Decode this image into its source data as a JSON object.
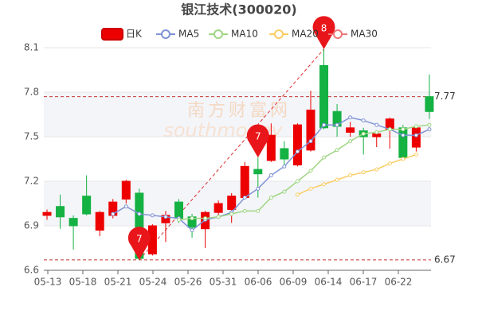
{
  "chart_data": {
    "type": "candlestick",
    "title": "银江技术(300020)",
    "categories": [
      null,
      null,
      null,
      null,
      null,
      null,
      null,
      null,
      null,
      null,
      null,
      null,
      null,
      null,
      null,
      null,
      null,
      null,
      null,
      null,
      null,
      null,
      null,
      null,
      null,
      null,
      null,
      null,
      null,
      null
    ],
    "xticks": [
      "05-13",
      "05-18",
      "05-21",
      "05-24",
      "05-26",
      "05-31",
      "06-06",
      "06-09",
      "06-14",
      "06-17",
      "06-22"
    ],
    "candles": {
      "name": "日K",
      "up_color": "#14b143",
      "down_color": "#ec0000",
      "open": [
        6.99,
        6.96,
        6.9,
        6.98,
        6.99,
        7.06,
        7.2,
        6.68,
        6.9,
        6.97,
        6.95,
        6.89,
        6.99,
        7.05,
        7.1,
        7.3,
        7.25,
        7.51,
        7.35,
        7.58,
        7.68,
        7.56,
        7.57,
        7.56,
        7.5,
        7.52,
        7.62,
        7.36,
        7.56,
        7.67
      ],
      "close": [
        6.97,
        7.03,
        6.95,
        7.1,
        6.87,
        6.97,
        7.08,
        7.12,
        6.71,
        6.92,
        7.06,
        6.96,
        6.88,
        6.99,
        7.01,
        7.09,
        7.28,
        7.34,
        7.42,
        7.31,
        7.41,
        7.98,
        7.67,
        7.53,
        7.54,
        7.5,
        7.55,
        7.56,
        7.43,
        7.77
      ],
      "high": [
        7.01,
        7.11,
        6.97,
        7.24,
        7.0,
        7.08,
        7.21,
        7.15,
        6.91,
        7.0,
        7.08,
        6.98,
        7.0,
        7.07,
        7.12,
        7.33,
        7.36,
        7.59,
        7.47,
        7.59,
        7.81,
        8.09,
        7.72,
        7.6,
        7.56,
        7.54,
        7.63,
        7.58,
        7.58,
        7.92
      ],
      "low": [
        6.94,
        6.88,
        6.74,
        6.97,
        6.83,
        6.95,
        7.05,
        6.67,
        6.7,
        6.79,
        6.92,
        6.82,
        6.75,
        6.96,
        6.92,
        7.08,
        7.09,
        7.33,
        7.31,
        7.3,
        7.4,
        7.55,
        7.5,
        7.5,
        7.38,
        7.43,
        7.42,
        7.35,
        7.4,
        7.62
      ]
    },
    "series": [
      {
        "name": "MA5",
        "color": "#7f92d4",
        "values": [
          null,
          null,
          null,
          null,
          null,
          6.98,
          7.03,
          6.98,
          6.97,
          6.96,
          6.95,
          6.87,
          6.94,
          6.96,
          6.99,
          7.09,
          7.15,
          7.24,
          7.3,
          7.4,
          7.47,
          7.58,
          7.58,
          7.63,
          7.61,
          7.58,
          7.55,
          7.51,
          7.51,
          7.55
        ]
      },
      {
        "name": "MA10",
        "color": "#9fd683",
        "values": [
          null,
          null,
          null,
          null,
          null,
          null,
          null,
          null,
          null,
          null,
          6.94,
          6.95,
          6.95,
          6.96,
          6.98,
          7.0,
          7.0,
          7.09,
          7.13,
          7.2,
          7.27,
          7.36,
          7.41,
          7.47,
          7.52,
          7.53,
          7.55,
          7.55,
          7.57,
          7.58
        ]
      },
      {
        "name": "MA20",
        "color": "#f9cd63",
        "values": [
          null,
          null,
          null,
          null,
          null,
          null,
          null,
          null,
          null,
          null,
          null,
          null,
          null,
          null,
          null,
          null,
          null,
          null,
          null,
          7.11,
          7.15,
          7.18,
          7.21,
          7.24,
          7.26,
          7.28,
          7.32,
          7.35,
          7.38,
          null
        ]
      },
      {
        "name": "MA30",
        "color": "#ee7777",
        "values": [
          null,
          null,
          null,
          null,
          null,
          null,
          null,
          null,
          null,
          null,
          null,
          null,
          null,
          null,
          null,
          null,
          null,
          null,
          null,
          null,
          null,
          null,
          null,
          null,
          null,
          null,
          null,
          null,
          null,
          null
        ]
      }
    ],
    "annotations": [
      {
        "label": "7",
        "index": 7,
        "value": 6.67
      },
      {
        "label": "8",
        "index": 21,
        "value": 8.09
      },
      {
        "label": "7",
        "index": 16,
        "value": 7.36
      }
    ],
    "ref_lines": [
      7.77,
      6.67
    ],
    "watermark": [
      "南方财富网",
      "southmoney"
    ],
    "ylim": [
      6.6,
      8.1
    ],
    "yticks": [
      6.6,
      6.9,
      7.2,
      7.5,
      7.8,
      8.1
    ],
    "grid": true
  }
}
